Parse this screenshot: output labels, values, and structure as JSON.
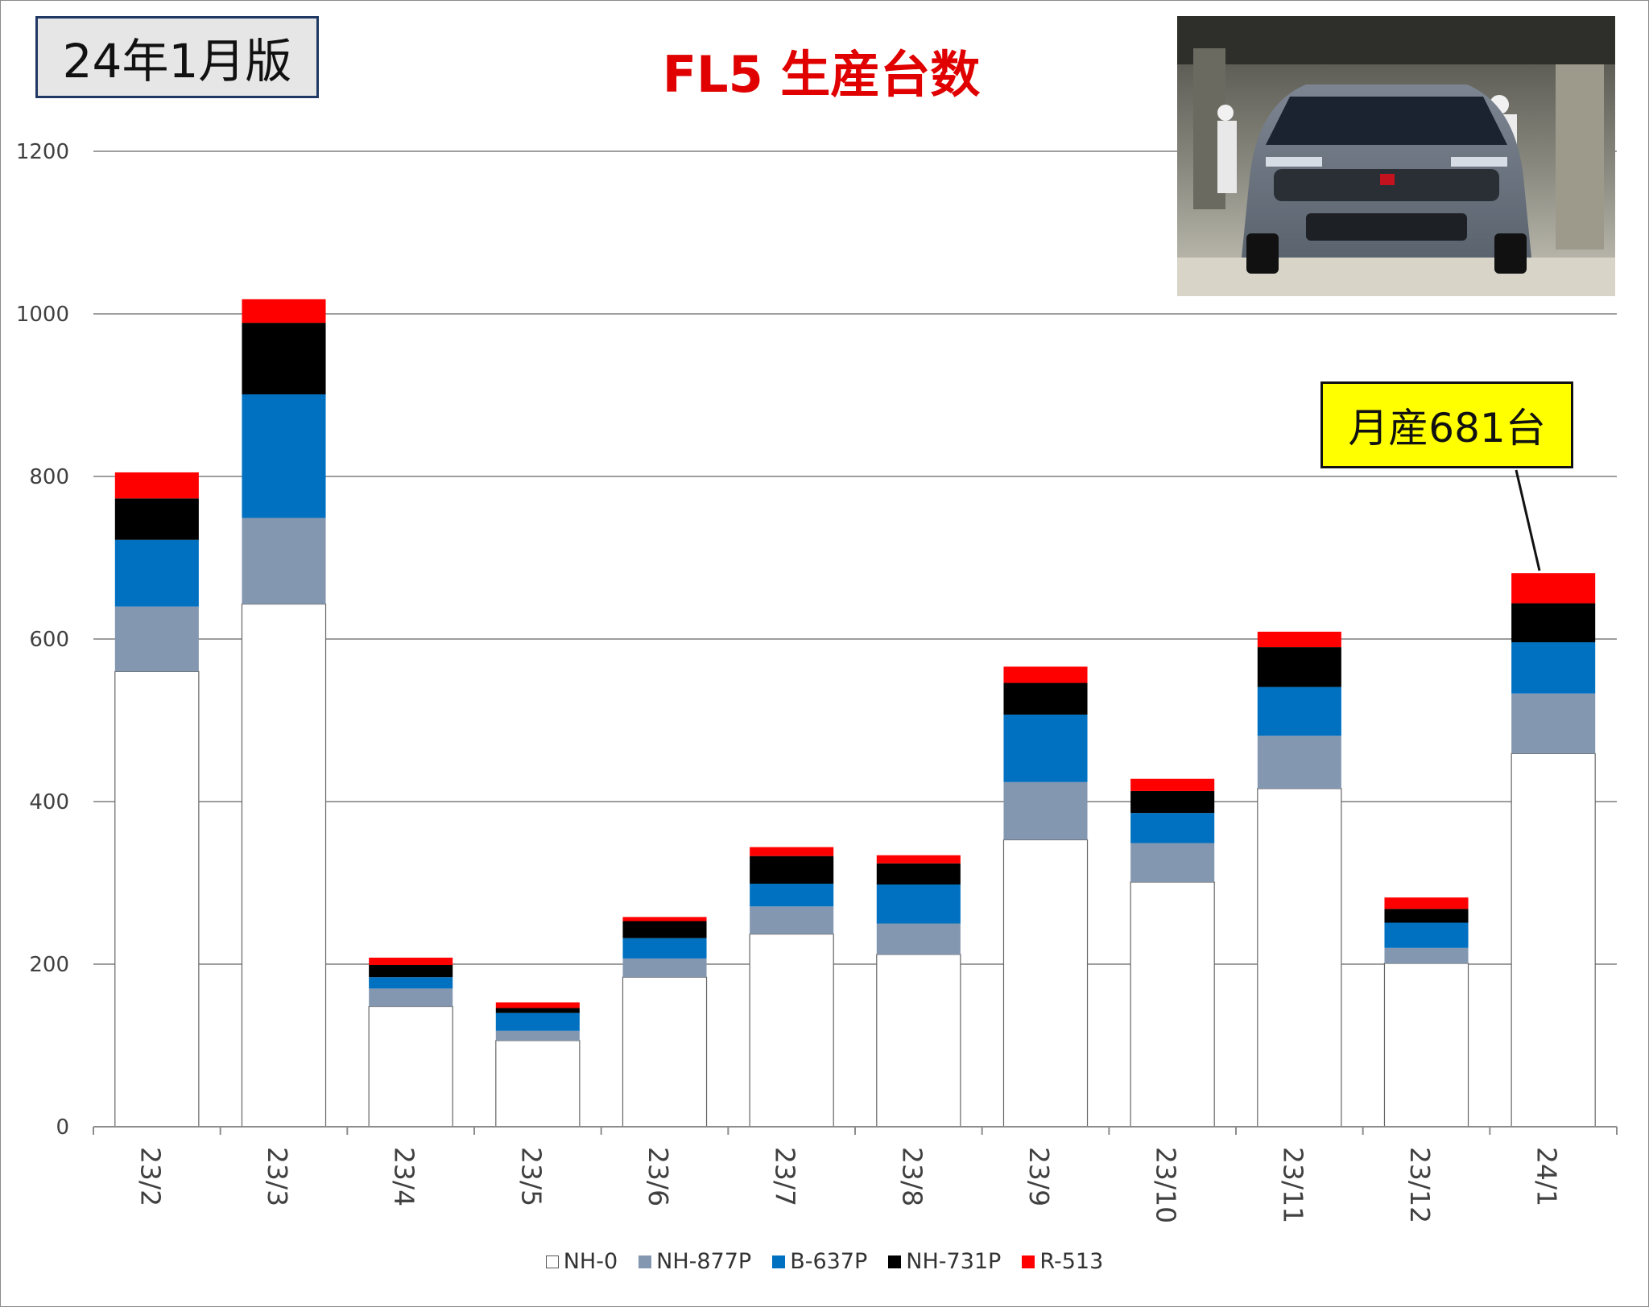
{
  "edition_label": "24年1月版",
  "callout_label": "月産681台",
  "colors": {
    "NH-0": "#ffffff",
    "NH-877P": "#8497b0",
    "B-637P": "#0070c0",
    "NH-731P": "#000000",
    "R-513": "#ff0000"
  },
  "photo_icon": "car-factory-photo",
  "chart_data": {
    "type": "bar",
    "stacked": true,
    "title": "FL5 生産台数",
    "xlabel": "",
    "ylabel": "",
    "ylim": [
      0,
      1200
    ],
    "yticks": [
      0,
      200,
      400,
      600,
      800,
      1000,
      1200
    ],
    "grid": true,
    "legend_position": "bottom",
    "categories": [
      "23/2",
      "23/3",
      "23/4",
      "23/5",
      "23/6",
      "23/7",
      "23/8",
      "23/9",
      "23/10",
      "23/11",
      "23/12",
      "24/1"
    ],
    "series": [
      {
        "name": "NH-0",
        "values": [
          560,
          643,
          148,
          106,
          184,
          237,
          212,
          353,
          301,
          416,
          201,
          459
        ]
      },
      {
        "name": "NH-877P",
        "values": [
          80,
          106,
          22,
          12,
          23,
          34,
          38,
          71,
          48,
          65,
          19,
          74
        ]
      },
      {
        "name": "B-637P",
        "values": [
          82,
          152,
          14,
          22,
          25,
          28,
          48,
          83,
          37,
          60,
          31,
          63
        ]
      },
      {
        "name": "NH-731P",
        "values": [
          51,
          88,
          15,
          6,
          21,
          34,
          26,
          39,
          27,
          49,
          17,
          48
        ]
      },
      {
        "name": "R-513",
        "values": [
          32,
          29,
          9,
          7,
          5,
          11,
          10,
          20,
          15,
          19,
          14,
          37
        ]
      }
    ]
  }
}
